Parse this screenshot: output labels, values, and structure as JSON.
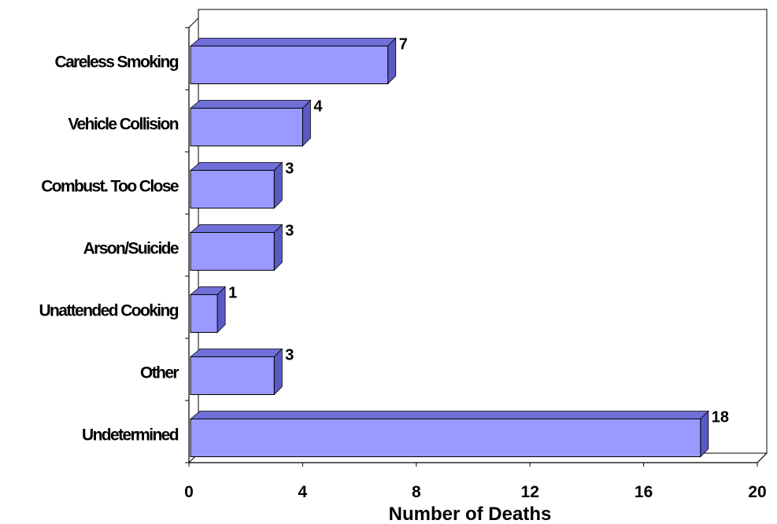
{
  "chart_data": {
    "type": "bar",
    "orientation": "horizontal",
    "three_d": true,
    "categories": [
      "Careless Smoking",
      "Vehicle Collision",
      "Combust. Too Close",
      "Arson/Suicide",
      "Unattended Cooking",
      "Other",
      "Undetermined"
    ],
    "values": [
      7,
      4,
      3,
      3,
      1,
      3,
      18
    ],
    "value_labels": [
      "7",
      "4",
      "3",
      "3",
      "1",
      "3",
      "18"
    ],
    "xlabel": "Number of Deaths",
    "xlim": [
      0,
      20
    ],
    "xticks": [
      "0",
      "4",
      "8",
      "12",
      "16",
      "20"
    ],
    "grid": false,
    "legend": "none",
    "colors": {
      "bar_front": "#9999ff",
      "bar_top": "#6f6fd8",
      "bar_side": "#5a5ac4",
      "bar_outline": "#000000"
    }
  }
}
